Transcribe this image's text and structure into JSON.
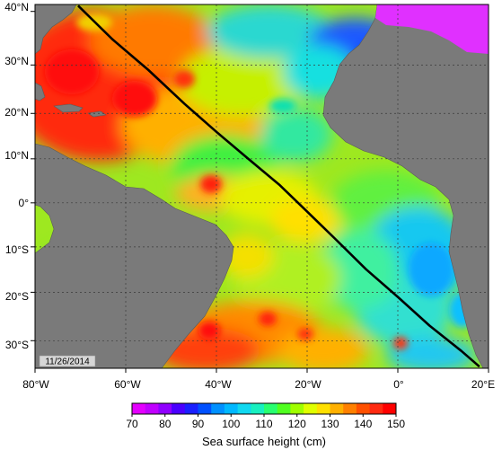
{
  "map": {
    "date_label": "11/26/2014",
    "lat_labels": [
      "40°N",
      "30°N",
      "20°N",
      "10°N",
      "0°",
      "10°S",
      "20°S",
      "30°S"
    ],
    "lon_labels": [
      "80°W",
      "60°W",
      "40°W",
      "20°W",
      "0°",
      "20°E"
    ],
    "track": {
      "description_points": [
        [
          -70.5,
          41
        ],
        [
          -63,
          35
        ],
        [
          -55,
          29
        ],
        [
          -47,
          22
        ],
        [
          -40,
          16
        ],
        [
          -33,
          10
        ],
        [
          -26,
          4
        ],
        [
          -20,
          -2
        ],
        [
          -14,
          -8
        ],
        [
          -7,
          -15
        ],
        [
          0,
          -21
        ],
        [
          7,
          -27
        ],
        [
          14,
          -32
        ],
        [
          18,
          -35
        ]
      ]
    }
  },
  "colorbar": {
    "title": "Sea surface height (cm)",
    "tick_labels": [
      "70",
      "80",
      "90",
      "100",
      "110",
      "120",
      "130",
      "140",
      "150"
    ],
    "colors": [
      "#e400ff",
      "#a000ff",
      "#1a1aff",
      "#0088ff",
      "#16d4f0",
      "#33ff33",
      "#e8ff00",
      "#ffa000",
      "#ff2000"
    ]
  },
  "colors": {
    "land": "#7a7a7a",
    "grid": "#3a3a3a",
    "track": "#000000"
  }
}
